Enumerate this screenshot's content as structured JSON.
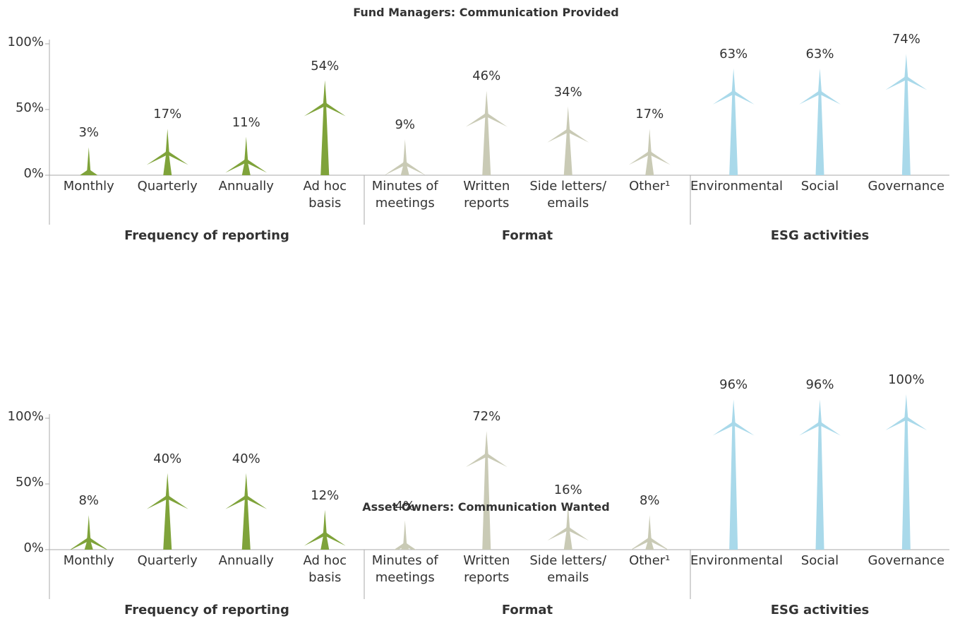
{
  "chart_data": [
    {
      "type": "pictograph",
      "title": "Fund Managers: Communication Provided",
      "ylim": [
        0,
        100
      ],
      "yticks": [
        {
          "value": 0,
          "label": "0%"
        },
        {
          "value": 50,
          "label": "50%"
        },
        {
          "value": 100,
          "label": "100%"
        }
      ],
      "groups": [
        {
          "name": "Frequency of reporting",
          "color": "#7fa33a",
          "categories": [
            "Monthly",
            "Quarterly",
            "Annually",
            "Ad hoc basis"
          ],
          "values": [
            3,
            17,
            11,
            54
          ],
          "value_labels": [
            "3%",
            "17%",
            "11%",
            "54%"
          ]
        },
        {
          "name": "Format",
          "color": "#c9cab5",
          "categories": [
            "Minutes of meetings",
            "Written reports",
            "Side letters/ emails",
            "Other¹"
          ],
          "values": [
            9,
            46,
            34,
            17
          ],
          "value_labels": [
            "9%",
            "46%",
            "34%",
            "17%"
          ]
        },
        {
          "name": "ESG activities",
          "color": "#a9d9ea",
          "categories": [
            "Environmental",
            "Social",
            "Governance"
          ],
          "values": [
            63,
            63,
            74
          ],
          "value_labels": [
            "63%",
            "63%",
            "74%"
          ]
        }
      ]
    },
    {
      "type": "pictograph",
      "title": "Asset Owners: Communication Wanted",
      "ylim": [
        0,
        100
      ],
      "yticks": [
        {
          "value": 0,
          "label": "0%"
        },
        {
          "value": 50,
          "label": "50%"
        },
        {
          "value": 100,
          "label": "100%"
        }
      ],
      "groups": [
        {
          "name": "Frequency of reporting",
          "color": "#7fa33a",
          "categories": [
            "Monthly",
            "Quarterly",
            "Annually",
            "Ad hoc basis"
          ],
          "values": [
            8,
            40,
            40,
            12
          ],
          "value_labels": [
            "8%",
            "40%",
            "40%",
            "12%"
          ]
        },
        {
          "name": "Format",
          "color": "#c9cab5",
          "categories": [
            "Minutes of meetings",
            "Written reports",
            "Side letters/ emails",
            "Other¹"
          ],
          "values": [
            4,
            72,
            16,
            8
          ],
          "value_labels": [
            "4%",
            "72%",
            "16%",
            "8%"
          ]
        },
        {
          "name": "ESG activities",
          "color": "#a9d9ea",
          "categories": [
            "Environmental",
            "Social",
            "Governance"
          ],
          "values": [
            96,
            96,
            100
          ],
          "value_labels": [
            "96%",
            "96%",
            "100%"
          ]
        }
      ]
    }
  ]
}
